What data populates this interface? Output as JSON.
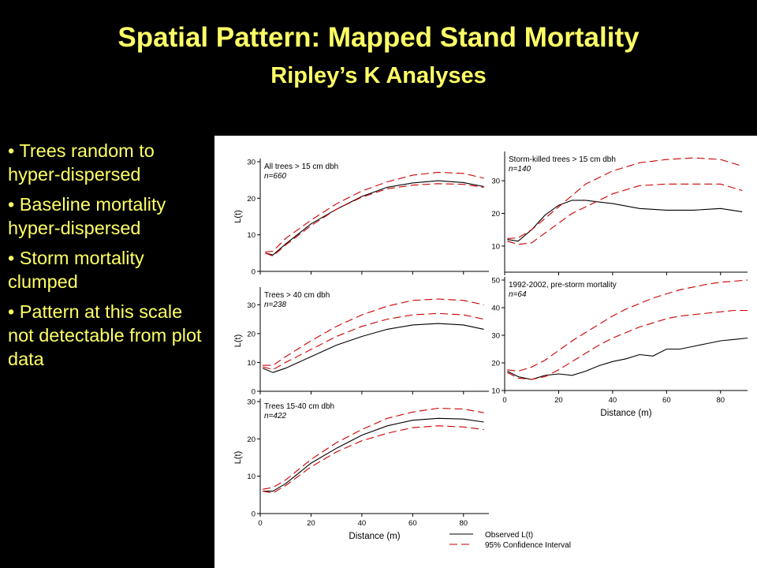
{
  "slide": {
    "title": "Spatial Pattern: Mapped Stand Mortality",
    "subtitle": "Ripley’s  K Analyses",
    "bullets": [
      "• Trees random to hyper-dispersed",
      "• Baseline mortality hyper-dispersed",
      "• Storm mortality clumped",
      "• Pattern at this scale not detectable from plot data"
    ]
  },
  "colors": {
    "background": "#000000",
    "title": "#ffff66",
    "observed": "#000000",
    "ci": "#cc0000"
  },
  "legend": {
    "observed": "Observed L(t)",
    "ci": "95% Confidence Interval"
  },
  "chart_data": [
    {
      "type": "line",
      "title": "All trees > 15 cm dbh",
      "subtitle": "n=660",
      "xlabel": "",
      "ylabel": "L(t)",
      "xlim": [
        0,
        90
      ],
      "ylim": [
        0,
        30
      ],
      "xticks": [],
      "yticks": [
        0,
        10,
        20,
        30
      ],
      "x": [
        2,
        5,
        10,
        20,
        30,
        40,
        50,
        60,
        70,
        80,
        88
      ],
      "series": [
        {
          "name": "Observed L(t)",
          "values": [
            5,
            4.5,
            7.5,
            13,
            17,
            20.5,
            23,
            24.2,
            24.8,
            24.3,
            23.2
          ]
        },
        {
          "name": "95% CI upper",
          "values": [
            5.3,
            5.5,
            9,
            14,
            18.5,
            22,
            24.5,
            26.3,
            27.1,
            26.8,
            25.5
          ]
        },
        {
          "name": "95% CI lower",
          "values": [
            5,
            4.2,
            7.2,
            12.5,
            17,
            20.3,
            22.6,
            23.6,
            24,
            23.8,
            23
          ]
        }
      ]
    },
    {
      "type": "line",
      "title": "Storm-killed trees > 15 cm dbh",
      "subtitle": "n=140",
      "xlabel": "",
      "ylabel": "",
      "xlim": [
        0,
        90
      ],
      "ylim": [
        2,
        38
      ],
      "xticks": [],
      "yticks": [
        10,
        20,
        30
      ],
      "x": [
        1,
        5,
        10,
        15,
        20,
        25,
        30,
        40,
        50,
        60,
        70,
        80,
        88
      ],
      "series": [
        {
          "name": "Observed L(t)",
          "values": [
            12,
            11.5,
            15,
            19.5,
            22.5,
            24,
            24,
            23,
            21.5,
            21,
            21,
            21.5,
            20.5
          ]
        },
        {
          "name": "95% CI upper",
          "values": [
            12.3,
            12.5,
            15,
            18.5,
            22,
            25.5,
            29,
            33,
            35.5,
            36.5,
            37,
            36.5,
            34.5
          ]
        },
        {
          "name": "95% CI lower",
          "values": [
            11.5,
            10.5,
            11,
            14,
            17,
            20,
            22,
            26,
            28.5,
            29,
            29,
            29,
            27
          ]
        }
      ]
    },
    {
      "type": "line",
      "title": "Trees > 40 cm dbh",
      "subtitle": "n=238",
      "xlabel": "",
      "ylabel": "L(t)",
      "xlim": [
        0,
        90
      ],
      "ylim": [
        0,
        35
      ],
      "xticks": [],
      "yticks": [
        0,
        10,
        20,
        30
      ],
      "x": [
        1,
        5,
        10,
        20,
        30,
        40,
        50,
        60,
        70,
        80,
        88
      ],
      "series": [
        {
          "name": "Observed L(t)",
          "values": [
            8,
            6.5,
            8,
            12,
            16,
            19,
            21.5,
            23,
            23.5,
            23,
            21.5
          ]
        },
        {
          "name": "95% CI upper",
          "values": [
            9,
            9,
            12,
            17.5,
            22.5,
            26.5,
            29.5,
            31.5,
            32,
            31.5,
            30
          ]
        },
        {
          "name": "95% CI lower",
          "values": [
            8.5,
            7.5,
            10,
            14.5,
            19,
            22.5,
            25,
            26.5,
            27,
            26.5,
            25
          ]
        }
      ]
    },
    {
      "type": "line",
      "title": "1992-2002, pre-storm mortality",
      "subtitle": "n=64",
      "xlabel": "Distance (m)",
      "ylabel": "",
      "xlim": [
        0,
        90
      ],
      "ylim": [
        10,
        50
      ],
      "xticks": [
        0,
        20,
        40,
        60,
        80
      ],
      "yticks": [
        10,
        20,
        30,
        40,
        50
      ],
      "x": [
        1,
        5,
        10,
        15,
        20,
        25,
        30,
        35,
        40,
        45,
        50,
        55,
        60,
        65,
        70,
        75,
        80,
        85,
        90
      ],
      "series": [
        {
          "name": "Observed L(t)",
          "values": [
            17,
            15,
            14,
            15.5,
            16,
            15.5,
            17,
            19,
            20.5,
            21.5,
            23,
            22.5,
            25,
            25,
            26,
            27,
            28,
            28.5,
            29
          ]
        },
        {
          "name": "95% CI upper",
          "values": [
            17.5,
            17,
            18.5,
            21,
            24.5,
            28,
            31,
            34,
            37,
            39.5,
            41.5,
            43.5,
            45,
            46.5,
            47.5,
            48.5,
            49.2,
            49.6,
            50
          ]
        },
        {
          "name": "95% CI lower",
          "values": [
            16.5,
            14.5,
            14,
            15,
            17.5,
            20.5,
            23.5,
            26.5,
            29,
            31,
            33,
            34.5,
            36,
            37,
            37.5,
            38,
            38.5,
            39,
            39
          ]
        }
      ]
    },
    {
      "type": "line",
      "title": "Trees 15-40 cm dbh",
      "subtitle": "n=422",
      "xlabel": "Distance (m)",
      "ylabel": "L(t)",
      "xlim": [
        0,
        90
      ],
      "ylim": [
        0,
        30
      ],
      "xticks": [
        0,
        20,
        40,
        60,
        80
      ],
      "yticks": [
        0,
        10,
        20,
        30
      ],
      "x": [
        1,
        5,
        10,
        20,
        30,
        40,
        50,
        60,
        70,
        80,
        88
      ],
      "series": [
        {
          "name": "Observed L(t)",
          "values": [
            6,
            6,
            8,
            13.5,
            17.5,
            21,
            23.5,
            25,
            25.5,
            25.3,
            24.5
          ]
        },
        {
          "name": "95% CI upper",
          "values": [
            6.5,
            7,
            9,
            14.5,
            19,
            22.5,
            25.5,
            27.2,
            28.2,
            28,
            27
          ]
        },
        {
          "name": "95% CI lower",
          "values": [
            6,
            5.5,
            7.5,
            12.5,
            16.5,
            19.5,
            21.5,
            23,
            23.5,
            23.2,
            22.5
          ]
        }
      ]
    }
  ]
}
